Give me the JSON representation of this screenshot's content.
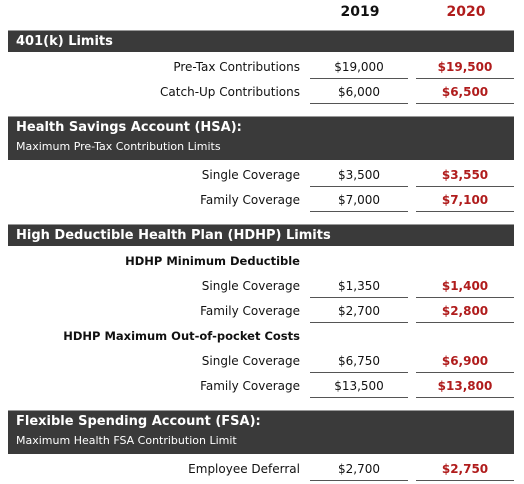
{
  "columns": [
    "2019",
    "2020"
  ],
  "sections": [
    {
      "title": "401(k) Limits",
      "rows": [
        {
          "label": "Pre-Tax Contributions",
          "values": [
            "$19,000",
            "$19,500"
          ]
        },
        {
          "label": "Catch-Up Contributions",
          "values": [
            "$6,000",
            "$6,500"
          ]
        }
      ]
    },
    {
      "title": "Health Savings Account (HSA):",
      "subtitle": "Maximum Pre-Tax Contribution Limits",
      "rows": [
        {
          "label": "Single Coverage",
          "values": [
            "$3,500",
            "$3,550"
          ]
        },
        {
          "label": "Family Coverage",
          "values": [
            "$7,000",
            "$7,100"
          ]
        }
      ]
    },
    {
      "title": "High Deductible Health Plan (HDHP) Limits",
      "rows": [
        {
          "heading": "HDHP Minimum Deductible"
        },
        {
          "label": "Single Coverage",
          "values": [
            "$1,350",
            "$1,400"
          ]
        },
        {
          "label": "Family Coverage",
          "values": [
            "$2,700",
            "$2,800"
          ]
        },
        {
          "heading": "HDHP Maximum Out-of-pocket Costs"
        },
        {
          "label": "Single Coverage",
          "values": [
            "$6,750",
            "$6,900"
          ]
        },
        {
          "label": "Family Coverage",
          "values": [
            "$13,500",
            "$13,800"
          ]
        }
      ]
    },
    {
      "title": "Flexible Spending Account (FSA):",
      "subtitle": "Maximum Health FSA Contribution Limit",
      "rows": [
        {
          "label": "Employee Deferral",
          "values": [
            "$2,700",
            "$2,750"
          ]
        }
      ]
    }
  ]
}
